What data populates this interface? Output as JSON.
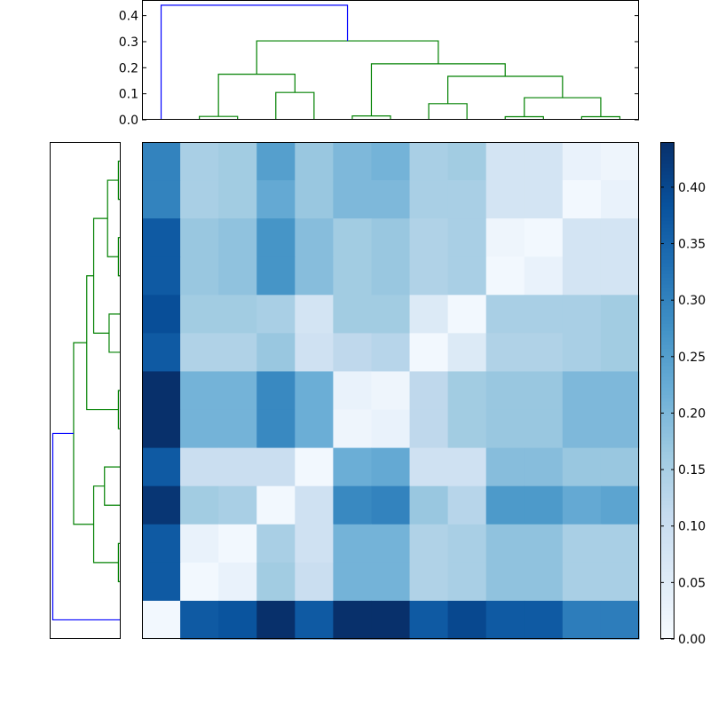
{
  "chart_data": {
    "type": "heatmap",
    "title": "",
    "colormap": "Blues",
    "colormap_stops": [
      "#f7fbff",
      "#deebf7",
      "#c6dbef",
      "#9ecae1",
      "#6baed6",
      "#4292c6",
      "#2171b5",
      "#08519c",
      "#08306b"
    ],
    "n": 13,
    "vmin": 0.0,
    "vmax": 0.44,
    "matrix": [
      [
        0.3,
        0.15,
        0.16,
        0.25,
        0.17,
        0.2,
        0.21,
        0.15,
        0.16,
        0.08,
        0.08,
        0.03,
        0.02
      ],
      [
        0.3,
        0.15,
        0.16,
        0.23,
        0.17,
        0.2,
        0.2,
        0.15,
        0.15,
        0.08,
        0.08,
        0.01,
        0.03
      ],
      [
        0.37,
        0.17,
        0.18,
        0.27,
        0.19,
        0.16,
        0.17,
        0.14,
        0.15,
        0.02,
        0.01,
        0.08,
        0.08
      ],
      [
        0.37,
        0.17,
        0.18,
        0.27,
        0.19,
        0.16,
        0.17,
        0.14,
        0.15,
        0.01,
        0.03,
        0.08,
        0.08
      ],
      [
        0.39,
        0.16,
        0.16,
        0.15,
        0.08,
        0.16,
        0.16,
        0.06,
        0.01,
        0.15,
        0.15,
        0.15,
        0.16
      ],
      [
        0.37,
        0.14,
        0.14,
        0.17,
        0.09,
        0.12,
        0.13,
        0.01,
        0.06,
        0.14,
        0.14,
        0.15,
        0.16
      ],
      [
        0.44,
        0.21,
        0.21,
        0.29,
        0.22,
        0.03,
        0.02,
        0.12,
        0.16,
        0.17,
        0.17,
        0.2,
        0.2
      ],
      [
        0.44,
        0.21,
        0.21,
        0.29,
        0.22,
        0.02,
        0.03,
        0.12,
        0.16,
        0.17,
        0.17,
        0.2,
        0.2
      ],
      [
        0.37,
        0.1,
        0.1,
        0.1,
        0.01,
        0.22,
        0.23,
        0.09,
        0.09,
        0.19,
        0.19,
        0.17,
        0.17
      ],
      [
        0.43,
        0.16,
        0.15,
        0.01,
        0.09,
        0.29,
        0.3,
        0.17,
        0.13,
        0.26,
        0.26,
        0.23,
        0.24
      ],
      [
        0.37,
        0.03,
        0.01,
        0.15,
        0.09,
        0.21,
        0.21,
        0.14,
        0.15,
        0.18,
        0.18,
        0.15,
        0.15
      ],
      [
        0.37,
        0.01,
        0.03,
        0.16,
        0.1,
        0.21,
        0.21,
        0.14,
        0.15,
        0.18,
        0.18,
        0.15,
        0.15
      ],
      [
        0.01,
        0.37,
        0.38,
        0.44,
        0.37,
        0.44,
        0.44,
        0.37,
        0.4,
        0.37,
        0.37,
        0.31,
        0.31
      ]
    ],
    "colorbar": {
      "ticks": [
        0.0,
        0.05,
        0.1,
        0.15,
        0.2,
        0.25,
        0.3,
        0.35,
        0.4
      ],
      "tick_labels": [
        "0.00",
        "0.05",
        "0.10",
        "0.15",
        "0.20",
        "0.25",
        "0.30",
        "0.35",
        "0.40"
      ]
    },
    "top_dendrogram": {
      "ylim": [
        0.0,
        0.46
      ],
      "y_ticks": [
        0.0,
        0.1,
        0.2,
        0.3,
        0.4
      ],
      "y_tick_labels": [
        "0.0",
        "0.1",
        "0.2",
        "0.3",
        "0.4"
      ],
      "links": [
        {
          "xs": [
            1,
            1,
            2,
            2
          ],
          "ys": [
            0.0,
            0.013,
            0.013,
            0.0
          ],
          "color": "#008000"
        },
        {
          "xs": [
            3,
            3,
            4,
            4
          ],
          "ys": [
            0.0,
            0.105,
            0.105,
            0.0
          ],
          "color": "#008000"
        },
        {
          "xs": [
            1.5,
            1.5,
            3.5,
            3.5
          ],
          "ys": [
            0.013,
            0.175,
            0.175,
            0.105
          ],
          "color": "#008000"
        },
        {
          "xs": [
            5,
            5,
            6,
            6
          ],
          "ys": [
            0.0,
            0.015,
            0.015,
            0.0
          ],
          "color": "#008000"
        },
        {
          "xs": [
            7,
            7,
            8,
            8
          ],
          "ys": [
            0.0,
            0.062,
            0.062,
            0.0
          ],
          "color": "#008000"
        },
        {
          "xs": [
            9,
            9,
            10,
            10
          ],
          "ys": [
            0.0,
            0.012,
            0.012,
            0.0
          ],
          "color": "#008000"
        },
        {
          "xs": [
            11,
            11,
            12,
            12
          ],
          "ys": [
            0.0,
            0.012,
            0.012,
            0.0
          ],
          "color": "#008000"
        },
        {
          "xs": [
            9.5,
            9.5,
            11.5,
            11.5
          ],
          "ys": [
            0.012,
            0.085,
            0.085,
            0.012
          ],
          "color": "#008000"
        },
        {
          "xs": [
            7.5,
            7.5,
            10.5,
            10.5
          ],
          "ys": [
            0.062,
            0.167,
            0.167,
            0.085
          ],
          "color": "#008000"
        },
        {
          "xs": [
            5.5,
            5.5,
            9.0,
            9.0
          ],
          "ys": [
            0.015,
            0.215,
            0.215,
            0.167
          ],
          "color": "#008000"
        },
        {
          "xs": [
            2.5,
            2.5,
            7.25,
            7.25
          ],
          "ys": [
            0.175,
            0.303,
            0.303,
            0.215
          ],
          "color": "#008000"
        },
        {
          "xs": [
            0,
            0,
            4.875,
            4.875
          ],
          "ys": [
            0.0,
            0.44,
            0.44,
            0.303
          ],
          "color": "#0000ff"
        }
      ]
    },
    "left_dendrogram": {
      "xlim": [
        0.0,
        0.46
      ],
      "links": [
        {
          "ys": [
            0,
            0,
            1,
            1
          ],
          "xs": [
            0.0,
            0.015,
            0.015,
            0.0
          ],
          "color": "#008000"
        },
        {
          "ys": [
            2,
            2,
            3,
            3
          ],
          "xs": [
            0.0,
            0.015,
            0.015,
            0.0
          ],
          "color": "#008000"
        },
        {
          "ys": [
            0.5,
            0.5,
            2.5,
            2.5
          ],
          "xs": [
            0.015,
            0.085,
            0.085,
            0.015
          ],
          "color": "#008000"
        },
        {
          "ys": [
            4,
            4,
            5,
            5
          ],
          "xs": [
            0.0,
            0.075,
            0.075,
            0.0
          ],
          "color": "#008000"
        },
        {
          "ys": [
            1.5,
            1.5,
            4.5,
            4.5
          ],
          "xs": [
            0.085,
            0.175,
            0.175,
            0.075
          ],
          "color": "#008000"
        },
        {
          "ys": [
            6,
            6,
            7,
            7
          ],
          "xs": [
            0.0,
            0.015,
            0.015,
            0.0
          ],
          "color": "#008000"
        },
        {
          "ys": [
            3.0,
            3.0,
            6.5,
            6.5
          ],
          "xs": [
            0.175,
            0.22,
            0.22,
            0.015
          ],
          "color": "#008000"
        },
        {
          "ys": [
            10,
            10,
            11,
            11
          ],
          "xs": [
            0.0,
            0.015,
            0.015,
            0.0
          ],
          "color": "#008000"
        },
        {
          "ys": [
            8,
            8,
            9,
            9
          ],
          "xs": [
            0.0,
            0.105,
            0.105,
            0.0
          ],
          "color": "#008000"
        },
        {
          "ys": [
            8.5,
            8.5,
            10.5,
            10.5
          ],
          "xs": [
            0.105,
            0.175,
            0.175,
            0.015
          ],
          "color": "#008000"
        },
        {
          "ys": [
            4.75,
            4.75,
            9.5,
            9.5
          ],
          "xs": [
            0.22,
            0.305,
            0.305,
            0.175
          ],
          "color": "#008000"
        },
        {
          "ys": [
            7.125,
            7.125,
            12,
            12
          ],
          "xs": [
            0.305,
            0.44,
            0.44,
            0.0
          ],
          "color": "#0000ff"
        }
      ]
    }
  }
}
